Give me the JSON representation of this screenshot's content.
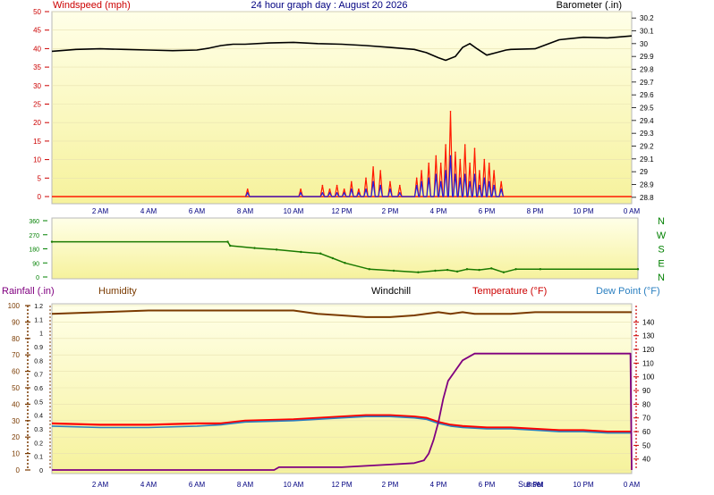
{
  "header": {
    "title": "24 hour graph day : August 20 2026",
    "left_label": "Windspeed (mph)",
    "right_label": "Barometer (.in)"
  },
  "bottom_labels": {
    "rainfall": "Rainfall (.in)",
    "humidity": "Humidity",
    "windchill": "Windchill",
    "temperature": "Temperature (°F)",
    "dewpoint": "Dew Point (°F)",
    "sunset": "Sunset"
  },
  "colors": {
    "plot_top": "#ffffe8",
    "plot_bottom": "#f6f29c",
    "gust": "#ff1a00",
    "wind": "#2020e0",
    "barometer": "#000000",
    "direction": "#1a7a00",
    "humidity": "#7a3a00",
    "temperature": "#ff0000",
    "dewpoint": "#2a7fc0",
    "rain": "#800080",
    "axis_red": "#cc0000",
    "axis_green": "#008000"
  },
  "chart_data": [
    {
      "type": "line",
      "panel": "wind-barometer",
      "x_ticks": [
        "2 AM",
        "4 AM",
        "6 AM",
        "8 AM",
        "10 AM",
        "12 PM",
        "2 PM",
        "4 PM",
        "6 PM",
        "8 PM",
        "10 PM",
        "0 AM"
      ],
      "xlim": [
        0,
        24
      ],
      "ylim": [
        0,
        50
      ],
      "y_ticks": [
        0,
        5,
        10,
        15,
        20,
        25,
        30,
        35,
        40,
        45,
        50
      ],
      "y2lim": [
        28.75,
        30.25
      ],
      "y2_ticks": [
        "28.8",
        "28.9",
        "29",
        "29.1",
        "29.2",
        "29.3",
        "29.4",
        "29.5",
        "29.6",
        "29.7",
        "29.8",
        "29.9",
        "30",
        "30.1",
        "30.2"
      ],
      "series": [
        {
          "name": "Barometer",
          "axis": "right",
          "x": [
            0,
            1,
            2,
            3,
            4,
            5,
            6,
            6.5,
            7,
            7.5,
            8,
            9,
            10,
            11,
            12,
            13,
            14,
            15,
            15.5,
            16,
            16.3,
            16.7,
            17,
            17.3,
            17.6,
            18,
            18.4,
            18.8,
            19,
            20,
            21,
            22,
            23,
            24
          ],
          "y": [
            29.94,
            29.955,
            29.96,
            29.955,
            29.95,
            29.945,
            29.95,
            29.965,
            29.985,
            29.995,
            29.995,
            30.005,
            30.01,
            30.0,
            29.995,
            29.985,
            29.97,
            29.955,
            29.93,
            29.89,
            29.87,
            29.9,
            29.97,
            30.0,
            29.96,
            29.91,
            29.93,
            29.95,
            29.955,
            29.96,
            30.03,
            30.05,
            30.045,
            30.06
          ]
        },
        {
          "name": "Gust",
          "axis": "left",
          "x": [
            8.1,
            10.3,
            11.2,
            11.5,
            11.8,
            12.1,
            12.4,
            12.7,
            13.0,
            13.3,
            13.6,
            14.0,
            14.4,
            15.1,
            15.3,
            15.6,
            15.9,
            16.1,
            16.3,
            16.5,
            16.7,
            16.9,
            17.1,
            17.3,
            17.5,
            17.7,
            17.9,
            18.1,
            18.3,
            18.6
          ],
          "y": [
            2,
            2,
            3,
            2,
            3,
            2,
            4,
            2,
            5,
            8,
            7,
            4,
            3,
            5,
            7,
            9,
            11,
            9,
            14,
            23,
            12,
            10,
            14,
            9,
            13,
            7,
            10,
            9,
            7,
            4
          ]
        },
        {
          "name": "Wind",
          "axis": "left",
          "x": [
            8.1,
            10.3,
            11.2,
            11.5,
            11.8,
            12.1,
            12.4,
            12.7,
            13.0,
            13.3,
            13.6,
            14.0,
            14.4,
            15.1,
            15.3,
            15.6,
            15.9,
            16.1,
            16.3,
            16.5,
            16.7,
            16.9,
            17.1,
            17.3,
            17.5,
            17.7,
            17.9,
            18.1,
            18.3,
            18.6
          ],
          "y": [
            1,
            1,
            1,
            1,
            1,
            1,
            2,
            1,
            2,
            4,
            3,
            2,
            1,
            3,
            4,
            5,
            6,
            4,
            7,
            11,
            6,
            5,
            6,
            4,
            6,
            3,
            5,
            4,
            3,
            2
          ]
        }
      ]
    },
    {
      "type": "line",
      "panel": "wind-direction",
      "xlim": [
        0,
        24
      ],
      "ylim": [
        0,
        360
      ],
      "y_ticks": [
        0,
        90,
        180,
        270,
        360
      ],
      "compass_labels": [
        "N",
        "W",
        "S",
        "E",
        "N"
      ],
      "series": [
        {
          "name": "Direction",
          "x": [
            0,
            7.2,
            7.3,
            8.3,
            9.2,
            10.2,
            11.0,
            11.5,
            12.0,
            13.0,
            14.0,
            15.0,
            15.7,
            16.2,
            16.6,
            17.0,
            17.5,
            18.0,
            18.5,
            19.0,
            20.0,
            24.0
          ],
          "y": [
            225,
            225,
            200,
            185,
            175,
            160,
            150,
            120,
            90,
            50,
            40,
            30,
            40,
            45,
            35,
            50,
            45,
            55,
            30,
            50,
            50,
            50
          ]
        }
      ]
    },
    {
      "type": "line",
      "panel": "temperature-humidity",
      "x_ticks": [
        "2 AM",
        "4 AM",
        "6 AM",
        "8 AM",
        "10 AM",
        "12 PM",
        "2 PM",
        "4 PM",
        "6 PM",
        "8 PM",
        "10 PM",
        "0 AM"
      ],
      "xlim": [
        0,
        24
      ],
      "ylim": [
        0,
        100
      ],
      "y_ticks": [
        0,
        10,
        20,
        30,
        40,
        50,
        60,
        70,
        80,
        90,
        100
      ],
      "rain_ticks": [
        "0",
        "0.1",
        "0.2",
        "0.3",
        "0.4",
        "0.5",
        "0.6",
        "0.7",
        "0.8",
        "0.9",
        "1",
        "1.1",
        "1.2"
      ],
      "temp_ticks": [
        40,
        50,
        60,
        70,
        80,
        90,
        100,
        110,
        120,
        130,
        140
      ],
      "temp_lim": [
        32,
        152
      ],
      "series": [
        {
          "name": "Humidity",
          "x": [
            0,
            2,
            4,
            6,
            8,
            10,
            11,
            12,
            13,
            14,
            15,
            16,
            16.5,
            17,
            17.5,
            18,
            19,
            20,
            22,
            24
          ],
          "y": [
            95,
            96,
            97,
            97,
            97,
            97,
            95,
            94,
            93,
            93,
            94,
            96,
            95,
            96,
            95,
            95,
            95,
            96,
            96,
            96
          ]
        },
        {
          "name": "Temperature",
          "x": [
            0,
            2,
            4,
            6,
            7,
            8,
            10,
            12,
            13,
            14,
            15,
            15.5,
            16,
            16.5,
            17,
            18,
            19,
            20,
            21,
            22,
            23,
            24
          ],
          "y": [
            66,
            65,
            65,
            66,
            66,
            68,
            69,
            71,
            72,
            72,
            71,
            70,
            67,
            65,
            64,
            63,
            63,
            62,
            61,
            61,
            60,
            60
          ]
        },
        {
          "name": "Dew Point",
          "x": [
            0,
            2,
            4,
            6,
            7,
            8,
            10,
            12,
            13,
            14,
            15,
            15.5,
            16,
            16.5,
            17,
            18,
            19,
            20,
            21,
            22,
            23,
            24
          ],
          "y": [
            64,
            63,
            63,
            64,
            65,
            67,
            68,
            70,
            71,
            71,
            70,
            69,
            66,
            64,
            63,
            62,
            62,
            61,
            60,
            60,
            59,
            59
          ]
        },
        {
          "name": "Rainfall",
          "x": [
            0,
            9.2,
            9.4,
            12.0,
            14.0,
            15.0,
            15.4,
            15.6,
            15.8,
            16.0,
            16.2,
            16.4,
            17.0,
            17.5,
            18.0,
            20.0,
            22.0,
            23.95,
            24.0
          ],
          "y": [
            0,
            0,
            0.02,
            0.02,
            0.04,
            0.05,
            0.07,
            0.12,
            0.22,
            0.35,
            0.52,
            0.65,
            0.8,
            0.85,
            0.85,
            0.85,
            0.85,
            0.85,
            0.0
          ]
        }
      ]
    }
  ]
}
